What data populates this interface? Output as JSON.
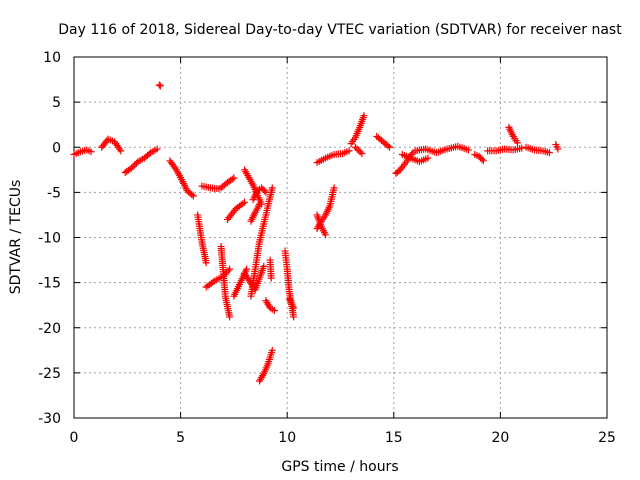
{
  "chart_data": {
    "type": "scatter",
    "title": "Day 116 of 2018, Sidereal Day-to-day VTEC variation (SDTVAR) for receiver nast",
    "xlabel": "GPS time / hours",
    "ylabel": "SDTVAR / TECUs",
    "xlim": [
      0,
      25
    ],
    "ylim": [
      -30,
      10
    ],
    "xticks": [
      0,
      5,
      10,
      15,
      20,
      25
    ],
    "yticks": [
      -30,
      -25,
      -20,
      -15,
      -10,
      -5,
      0,
      5,
      10
    ],
    "xtick_labels": [
      "0",
      "5",
      "10",
      "15",
      "20",
      "25"
    ],
    "ytick_labels": [
      "-30",
      "-25",
      "-20",
      "-15",
      "-10",
      "-5",
      "0",
      "5",
      "10"
    ],
    "grid": true,
    "marker": "+",
    "color": "#ff0000",
    "segments": [
      {
        "x": [
          0.0,
          0.3,
          0.6,
          0.8
        ],
        "y": [
          -0.8,
          -0.5,
          -0.3,
          -0.5
        ]
      },
      {
        "x": [
          1.3,
          1.6,
          1.9,
          2.2
        ],
        "y": [
          0.0,
          0.9,
          0.6,
          -0.4
        ]
      },
      {
        "x": [
          2.4,
          2.7,
          3.0,
          3.3,
          3.6,
          3.9
        ],
        "y": [
          -2.8,
          -2.3,
          -1.6,
          -1.2,
          -0.6,
          -0.2
        ]
      },
      {
        "x": [
          4.0,
          4.05
        ],
        "y": [
          6.9,
          6.8
        ]
      },
      {
        "x": [
          4.5,
          4.8,
          5.1,
          5.3,
          5.6
        ],
        "y": [
          -1.5,
          -2.5,
          -3.8,
          -4.8,
          -5.4
        ]
      },
      {
        "x": [
          5.8,
          6.0,
          6.2
        ],
        "y": [
          -7.5,
          -10.5,
          -12.8
        ]
      },
      {
        "x": [
          6.0,
          6.4,
          6.8
        ],
        "y": [
          -4.3,
          -4.5,
          -4.6
        ]
      },
      {
        "x": [
          6.9,
          7.2,
          7.5
        ],
        "y": [
          -4.5,
          -3.9,
          -3.4
        ]
      },
      {
        "x": [
          6.2,
          6.6,
          7.0,
          7.3
        ],
        "y": [
          -15.5,
          -14.8,
          -14.3,
          -13.5
        ]
      },
      {
        "x": [
          6.9,
          7.0,
          7.1,
          7.3
        ],
        "y": [
          -11.0,
          -13.8,
          -16.5,
          -18.8
        ]
      },
      {
        "x": [
          7.2,
          7.6,
          8.0
        ],
        "y": [
          -8.0,
          -6.8,
          -6.1
        ]
      },
      {
        "x": [
          7.5,
          7.8,
          8.1
        ],
        "y": [
          -16.5,
          -15.0,
          -13.5
        ]
      },
      {
        "x": [
          8.0,
          8.4,
          8.8
        ],
        "y": [
          -2.5,
          -4.2,
          -6.3
        ]
      },
      {
        "x": [
          8.0,
          8.5,
          8.9
        ],
        "y": [
          -14.0,
          -15.8,
          -13.2
        ]
      },
      {
        "x": [
          8.3,
          8.5,
          8.7,
          8.9,
          9.1,
          9.3
        ],
        "y": [
          -16.5,
          -13.5,
          -10.5,
          -8.5,
          -6.5,
          -4.5
        ]
      },
      {
        "x": [
          8.4,
          8.6,
          8.8,
          9.0
        ],
        "y": [
          -5.8,
          -4.8,
          -4.5,
          -5.0
        ]
      },
      {
        "x": [
          8.3,
          8.5,
          8.7
        ],
        "y": [
          -8.2,
          -7.2,
          -6.3
        ]
      },
      {
        "x": [
          9.0,
          9.2,
          9.4
        ],
        "y": [
          -17.0,
          -17.8,
          -18.1
        ]
      },
      {
        "x": [
          8.7,
          8.9,
          9.1,
          9.3
        ],
        "y": [
          -25.9,
          -25.1,
          -24.0,
          -22.5
        ]
      },
      {
        "x": [
          9.2,
          9.25
        ],
        "y": [
          -12.5,
          -14.5
        ]
      },
      {
        "x": [
          9.9,
          10.0,
          10.1,
          10.3
        ],
        "y": [
          -11.5,
          -13.5,
          -16.0,
          -18.8
        ]
      },
      {
        "x": [
          10.1,
          10.3
        ],
        "y": [
          -16.8,
          -17.8
        ]
      },
      {
        "x": [
          11.4,
          11.6,
          11.8,
          12.0,
          12.2
        ],
        "y": [
          -9.0,
          -8.2,
          -7.5,
          -6.5,
          -4.5
        ]
      },
      {
        "x": [
          11.4,
          11.6,
          11.8
        ],
        "y": [
          -7.5,
          -8.8,
          -9.7
        ]
      },
      {
        "x": [
          11.4,
          11.8,
          12.2,
          12.6,
          12.9
        ],
        "y": [
          -1.7,
          -1.2,
          -0.8,
          -0.7,
          -0.4
        ]
      },
      {
        "x": [
          13.0,
          13.2,
          13.4,
          13.6
        ],
        "y": [
          0.4,
          1.1,
          2.2,
          3.5
        ]
      },
      {
        "x": [
          13.2,
          13.5
        ],
        "y": [
          0.0,
          -0.7
        ]
      },
      {
        "x": [
          14.2,
          14.5,
          14.8
        ],
        "y": [
          1.2,
          0.6,
          0.0
        ]
      },
      {
        "x": [
          15.1,
          15.3,
          15.5,
          15.7,
          15.9
        ],
        "y": [
          -2.9,
          -2.5,
          -1.9,
          -1.2,
          -0.6
        ]
      },
      {
        "x": [
          15.4,
          15.8,
          16.2,
          16.6
        ],
        "y": [
          -0.8,
          -1.2,
          -1.6,
          -1.2
        ]
      },
      {
        "x": [
          16.0,
          16.5,
          17.0,
          17.5,
          18.0,
          18.5
        ],
        "y": [
          -0.4,
          -0.2,
          -0.6,
          -0.2,
          0.1,
          -0.3
        ]
      },
      {
        "x": [
          18.8,
          19.0,
          19.2
        ],
        "y": [
          -0.8,
          -1.0,
          -1.5
        ]
      },
      {
        "x": [
          19.4,
          19.8,
          20.2,
          20.6,
          21.0
        ],
        "y": [
          -0.4,
          -0.4,
          -0.2,
          -0.3,
          -0.1
        ]
      },
      {
        "x": [
          20.4,
          20.6,
          20.8
        ],
        "y": [
          2.2,
          1.2,
          0.5
        ]
      },
      {
        "x": [
          21.2,
          21.6,
          22.0,
          22.3
        ],
        "y": [
          0.0,
          -0.3,
          -0.4,
          -0.6
        ]
      },
      {
        "x": [
          22.6,
          22.7
        ],
        "y": [
          0.3,
          -0.2
        ]
      }
    ]
  }
}
